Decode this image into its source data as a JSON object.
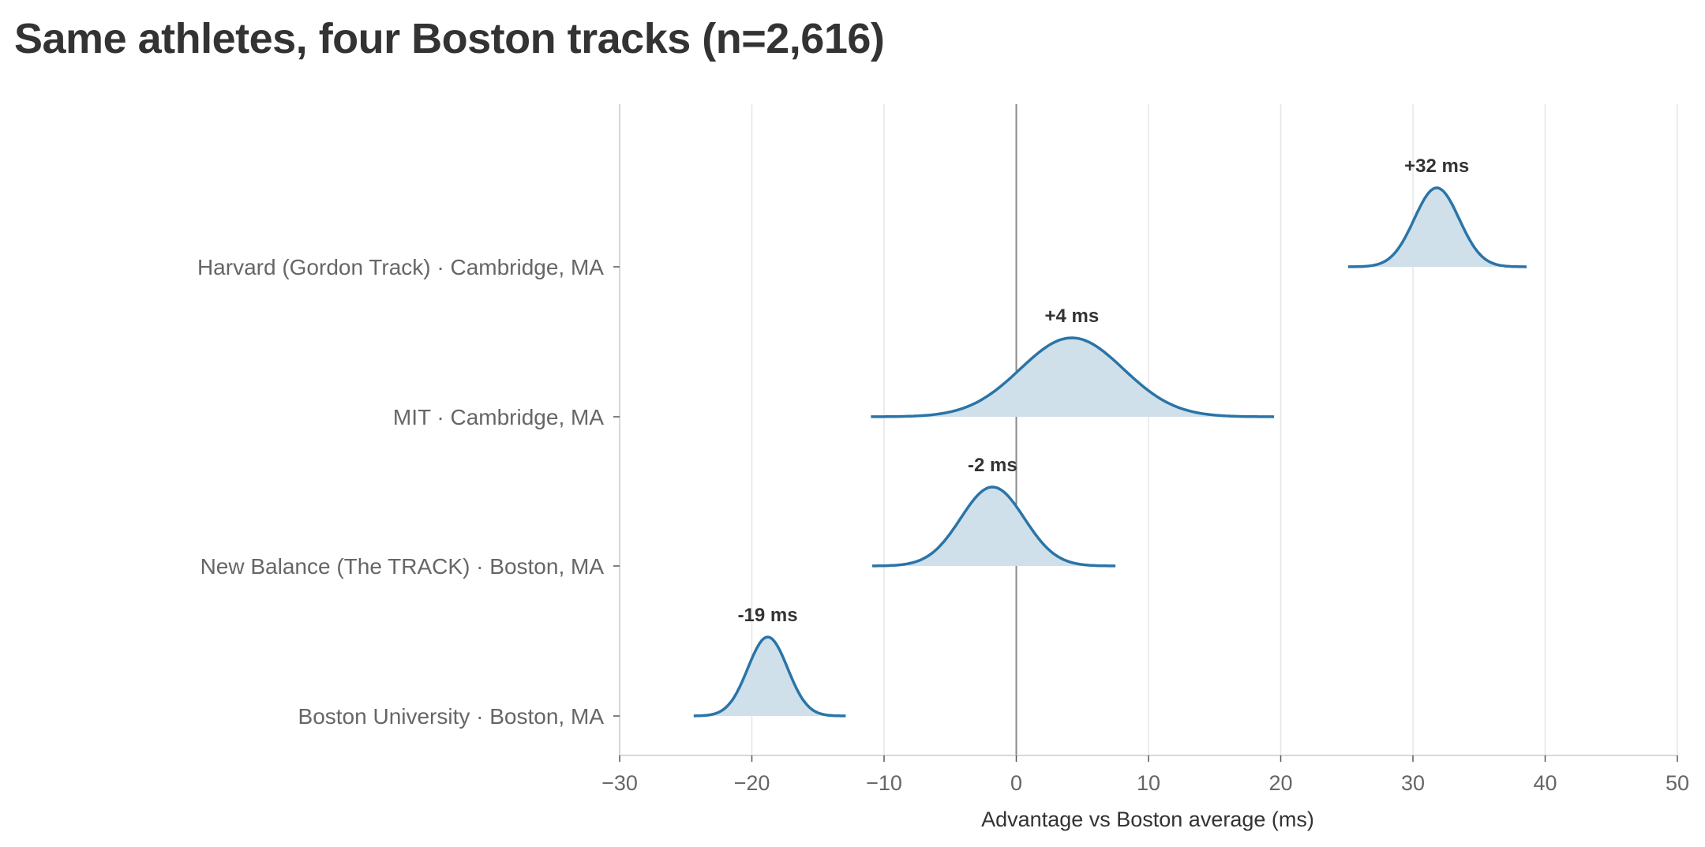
{
  "chart_data": {
    "type": "ridgeline",
    "title": "Same athletes, four Boston tracks (n=2,616)",
    "xlabel": "Advantage vs Boston average (ms)",
    "xlim": [
      -30,
      50
    ],
    "xticks": [
      -30,
      -20,
      -10,
      0,
      10,
      20,
      30,
      40,
      50
    ],
    "xtick_labels": [
      "−30",
      "−20",
      "−10",
      "0",
      "10",
      "20",
      "30",
      "40",
      "50"
    ],
    "reference_line_x": 0,
    "grid": "vertical",
    "categories": [
      "Harvard (Gordon Track) · Cambridge, MA",
      "MIT · Cambridge, MA",
      "New Balance (The TRACK) · Boston, MA",
      "Boston University · Boston, MA"
    ],
    "series": [
      {
        "category": "Harvard (Gordon Track) · Cambridge, MA",
        "mean": 31.8,
        "sd": 1.7,
        "range": [
          25.1,
          38.6
        ],
        "label": "+32 ms"
      },
      {
        "category": "MIT · Cambridge, MA",
        "mean": 4.2,
        "sd": 3.9,
        "range": [
          -11.0,
          19.5
        ],
        "label": "+4 ms"
      },
      {
        "category": "New Balance (The TRACK) · Boston, MA",
        "mean": -1.8,
        "sd": 2.4,
        "range": [
          -10.9,
          7.5
        ],
        "label": "-2 ms"
      },
      {
        "category": "Boston University · Boston, MA",
        "mean": -18.8,
        "sd": 1.5,
        "range": [
          -24.4,
          -12.9
        ],
        "label": "-19 ms"
      }
    ],
    "colors": {
      "line": "#2a74a8",
      "fill": "#cfe0ea",
      "grid": "#e6e6e6",
      "zero_line": "#8a8a8a",
      "axis": "#cccccc"
    }
  }
}
